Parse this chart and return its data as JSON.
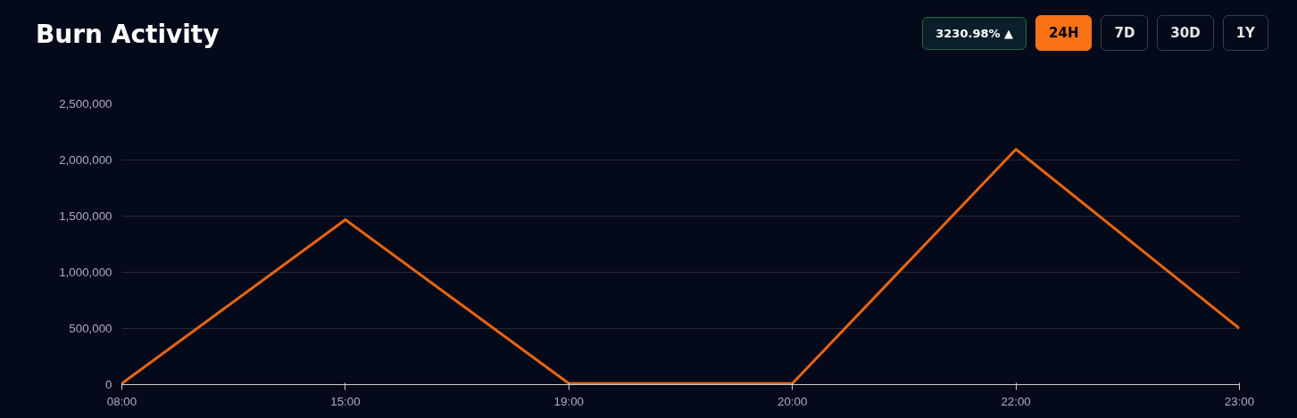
{
  "chart_data": {
    "type": "line",
    "title": "Burn Activity",
    "categories": [
      "08:00",
      "15:00",
      "19:00",
      "20:00",
      "22:00",
      "23:00"
    ],
    "series": [
      {
        "color": "#e8650f",
        "values": [
          10000,
          1468000,
          10000,
          10000,
          2095000,
          500000
        ]
      }
    ],
    "ylim": [
      0,
      2500000
    ],
    "yticks": [
      {
        "value": 0,
        "label": "0"
      },
      {
        "value": 500000,
        "label": "500,000"
      },
      {
        "value": 1000000,
        "label": "1,000,000"
      },
      {
        "value": 1500000,
        "label": "1,500,000"
      },
      {
        "value": 2000000,
        "label": "2,000,000"
      },
      {
        "value": 2500000,
        "label": "2,500,000"
      }
    ],
    "grid": "y",
    "marker": "none",
    "line_style": "solid",
    "annotations": [
      "3230.98% ▲",
      "24H",
      "7D",
      "30D",
      "1Y"
    ]
  }
}
